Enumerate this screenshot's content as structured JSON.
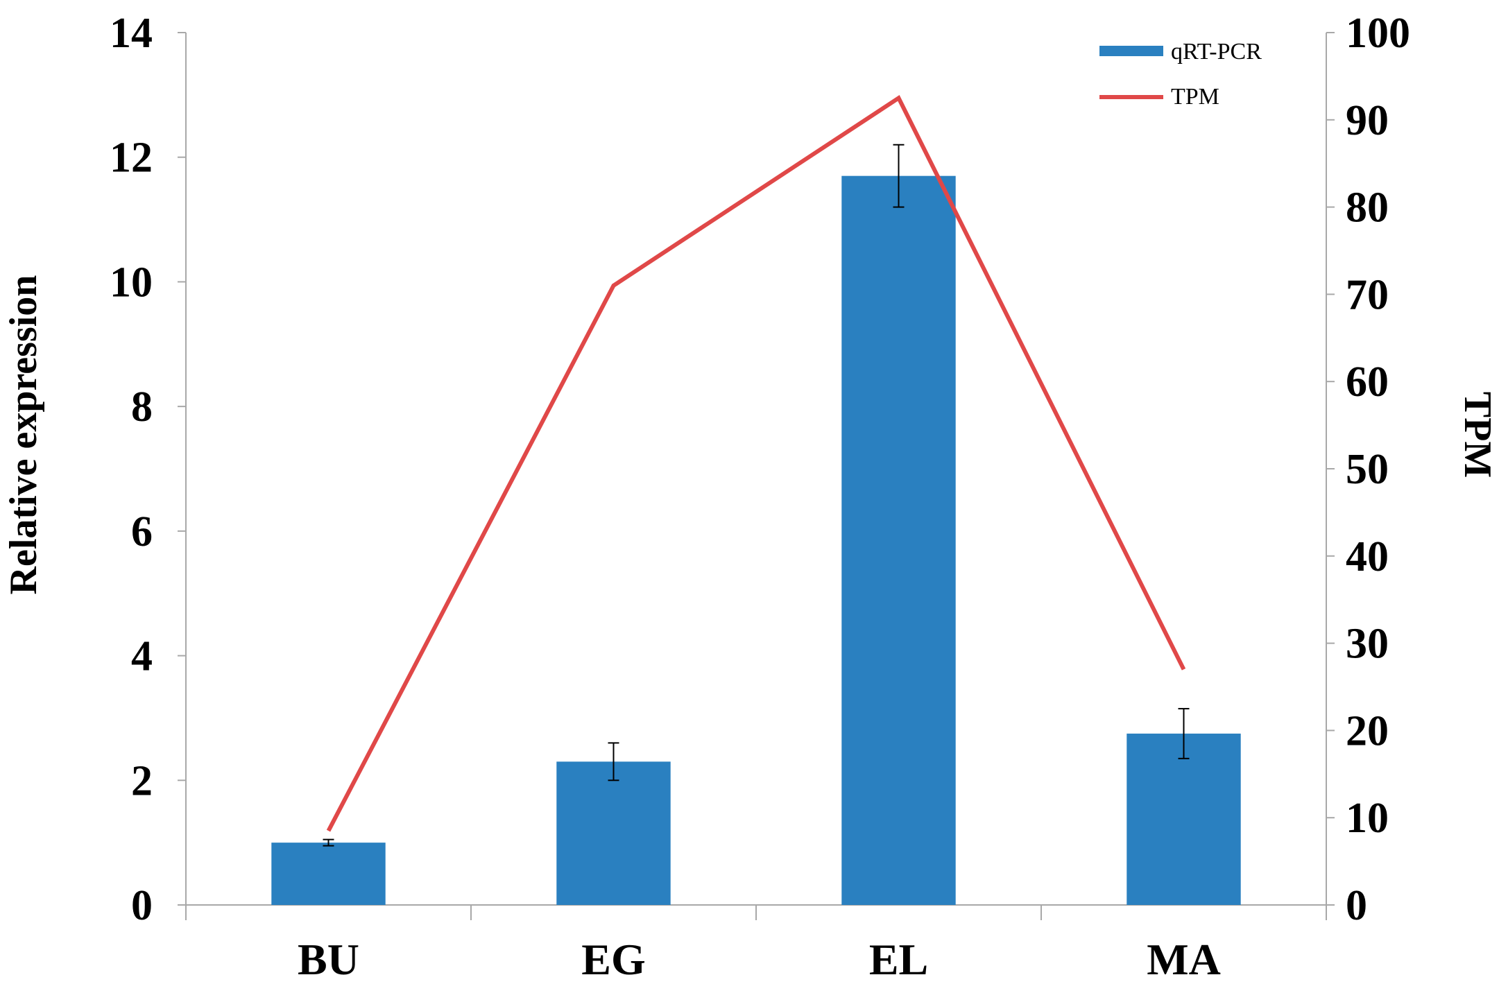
{
  "chart_data": {
    "type": "bar",
    "categories": [
      "BU",
      "EG",
      "EL",
      "MA"
    ],
    "series": [
      {
        "name": "qRT-PCR",
        "kind": "bar",
        "axis": "left",
        "color": "#2a80c0",
        "values": [
          1.0,
          2.3,
          11.7,
          2.75
        ],
        "error": [
          0.05,
          0.3,
          0.5,
          0.4
        ]
      },
      {
        "name": "TPM",
        "kind": "line",
        "axis": "right",
        "color": "#e04848",
        "values": [
          8.5,
          71,
          92.5,
          27
        ]
      }
    ],
    "ylabel": "Relative expression",
    "y2label": "TPM",
    "ylim": [
      0,
      14
    ],
    "y2lim": [
      0,
      100
    ],
    "yticks": [
      "0",
      "2",
      "4",
      "6",
      "8",
      "10",
      "12",
      "14"
    ],
    "y2ticks": [
      "0",
      "10",
      "20",
      "30",
      "40",
      "50",
      "60",
      "70",
      "80",
      "90",
      "100"
    ],
    "legend": "top-right",
    "grid": false
  }
}
